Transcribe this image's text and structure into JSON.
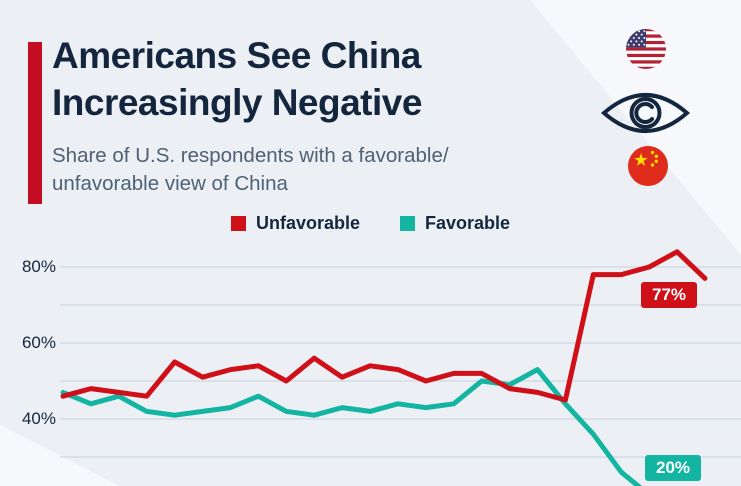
{
  "header": {
    "title_line1": "Americans See China",
    "title_line2": "Increasingly Negative",
    "subtitle_line1": "Share of U.S. respondents with a favorable/",
    "subtitle_line2": "unfavorable view of China",
    "accent_color": "#c40c22"
  },
  "icons": [
    "us-flag",
    "eye",
    "china-flag"
  ],
  "colors": {
    "background": "#eceff4",
    "panel_highlight": "#f6f8fb",
    "grid": "#c9d0da",
    "title_text": "#14263e",
    "subtitle_text": "#4e6175"
  },
  "chart_data": {
    "type": "line",
    "title": "Americans See China Increasingly Negative",
    "subtitle": "Share of U.S. respondents with a favorable/unfavorable view of China",
    "legend_position": "top-center",
    "grid": true,
    "grid_values": [
      80,
      70,
      60,
      50,
      40,
      30
    ],
    "y_ticks": [
      {
        "label": "80%",
        "value": 80
      },
      {
        "label": "60%",
        "value": 60
      },
      {
        "label": "40%",
        "value": 40
      }
    ],
    "ylim_visible": [
      22,
      88
    ],
    "x_axis_labels_visible": false,
    "series": [
      {
        "id": "unfavorable",
        "name": "Unfavorable",
        "color": "#d01018",
        "values": [
          46,
          48,
          47,
          46,
          55,
          51,
          53,
          54,
          50,
          56,
          51,
          54,
          53,
          50,
          52,
          52,
          48,
          47,
          45,
          78,
          78,
          80,
          84,
          77
        ]
      },
      {
        "id": "favorable",
        "name": "Favorable",
        "color": "#13b5a2",
        "values": [
          47,
          44,
          46,
          42,
          41,
          42,
          43,
          46,
          42,
          41,
          43,
          42,
          44,
          43,
          44,
          50,
          49,
          53,
          44,
          36,
          26,
          20,
          18,
          20
        ]
      }
    ],
    "annotations": [
      {
        "text": "77%",
        "series": "unfavorable",
        "color": "#d01018"
      },
      {
        "text": "20%",
        "series": "favorable",
        "color": "#13b5a2"
      }
    ]
  }
}
